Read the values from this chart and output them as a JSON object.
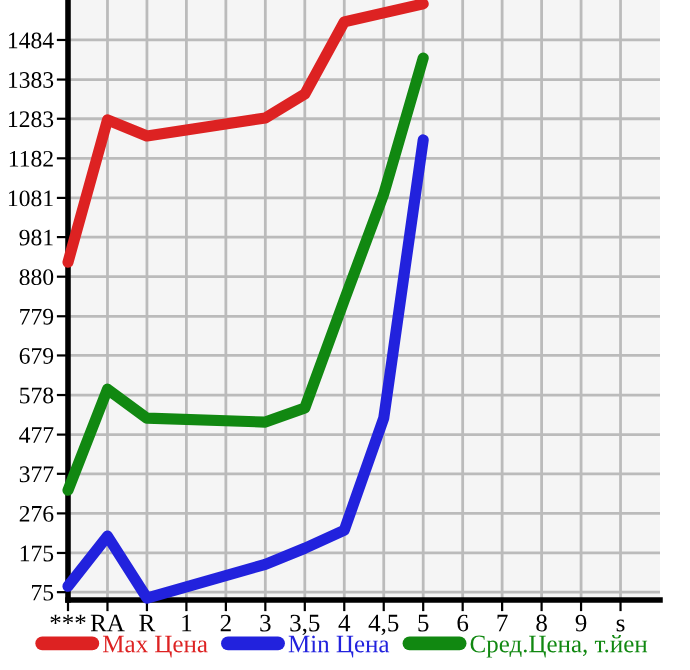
{
  "chart_data": {
    "type": "line",
    "categories": [
      "***",
      "RA",
      "R",
      "1",
      "2",
      "3",
      "3,5",
      "4",
      "4,5",
      "5",
      "6",
      "7",
      "8",
      "9",
      "s"
    ],
    "series": [
      {
        "name": "Max Цена",
        "color": "#dd2222",
        "values": [
          917,
          1280,
          1239,
          null,
          null,
          1285,
          1346,
          1530,
          null,
          1576,
          null,
          null,
          null,
          null,
          null
        ]
      },
      {
        "name": "Min Цена",
        "color": "#2222dd",
        "values": [
          90,
          218,
          60,
          null,
          null,
          146,
          187,
          233,
          519,
          1229,
          null,
          null,
          null,
          null,
          null
        ]
      },
      {
        "name": "Сред.Цена, т.йен",
        "color": "#118811",
        "values": [
          335,
          593,
          519,
          null,
          null,
          509,
          545,
          820,
          1091,
          1438,
          null,
          null,
          null,
          null,
          null
        ]
      }
    ],
    "ylim": [
      55,
      1586
    ],
    "yticks": [
      75,
      175,
      276,
      377,
      477,
      578,
      679,
      779,
      880,
      981,
      1081,
      1182,
      1283,
      1383,
      1484
    ],
    "grid": true,
    "legend": "bottom",
    "marker": "none",
    "line_style": "solid"
  }
}
